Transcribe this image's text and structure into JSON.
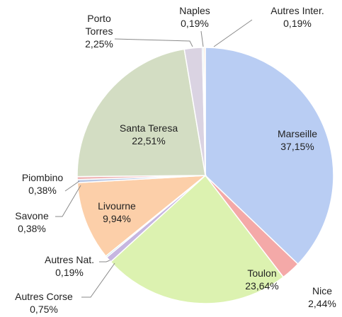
{
  "chart_data": {
    "type": "pie",
    "categories": [
      "Marseille",
      "Nice",
      "Toulon",
      "Autres Corse",
      "Autres Nat.",
      "Livourne",
      "Savone",
      "Piombino",
      "Santa Teresa",
      "Porto Torres",
      "Naples",
      "Autres Inter."
    ],
    "values": [
      37.15,
      2.44,
      23.64,
      0.75,
      0.19,
      9.94,
      0.38,
      0.38,
      22.51,
      2.25,
      0.19,
      0.19
    ],
    "value_labels": [
      "37,15%",
      "2,44%",
      "23,64%",
      "0,75%",
      "0,19%",
      "9,94%",
      "0,38%",
      "0,38%",
      "22,51%",
      "2,25%",
      "0,19%",
      "0,19%"
    ],
    "colors": [
      "#b9cdf3",
      "#f4a9a8",
      "#dcf2b0",
      "#c6b6e0",
      "#a9d7e6",
      "#fccfa9",
      "#b9c8e6",
      "#efb6b6",
      "#d3ddc3",
      "#dad3e2",
      "#cde2ea",
      "#f8d8c2"
    ]
  }
}
